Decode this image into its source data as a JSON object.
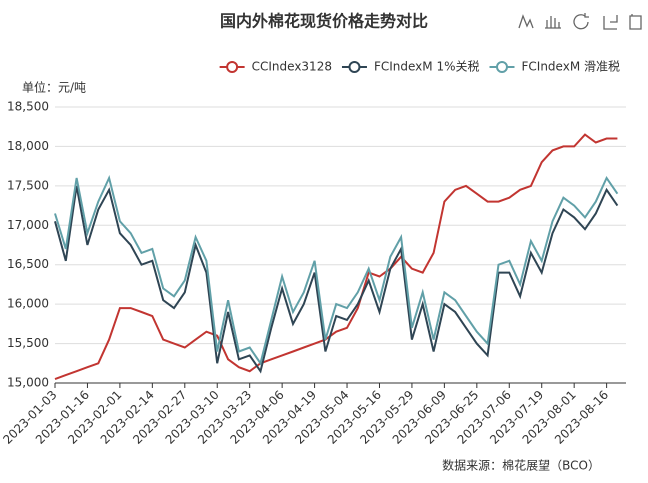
{
  "chart_data": {
    "type": "line",
    "title": "国内外棉花现货价格走势对比",
    "y_label": "单位：元/吨",
    "source": "数据来源：棉花展望（BCO）",
    "categories": [
      "2023-01-03",
      null,
      null,
      "2023-01-16",
      null,
      null,
      "2023-02-01",
      null,
      null,
      "2023-02-14",
      null,
      null,
      "2023-02-27",
      null,
      null,
      "2023-03-10",
      null,
      null,
      "2023-03-23",
      null,
      null,
      "2023-04-06",
      null,
      null,
      "2023-04-19",
      null,
      null,
      "2023-05-04",
      null,
      null,
      "2023-05-16",
      null,
      null,
      "2023-05-29",
      null,
      null,
      "2023-06-09",
      null,
      null,
      "2023-06-25",
      null,
      null,
      "2023-07-06",
      null,
      null,
      "2023-07-19",
      null,
      null,
      "2023-08-01",
      null,
      null,
      "2023-08-16",
      null
    ],
    "series": [
      {
        "name": "CCIndex3128",
        "color": "#c23531",
        "values": [
          15050,
          15100,
          15150,
          15200,
          15250,
          15550,
          15950,
          15950,
          15900,
          15850,
          15550,
          15500,
          15450,
          15550,
          15650,
          15600,
          15300,
          15200,
          15150,
          15250,
          15300,
          15350,
          15400,
          15450,
          15500,
          15550,
          15650,
          15700,
          15950,
          16400,
          16350,
          16450,
          16600,
          16450,
          16400,
          16650,
          17300,
          17450,
          17500,
          17400,
          17300,
          17300,
          17350,
          17450,
          17500,
          17800,
          17950,
          18000,
          18000,
          18150,
          18050,
          18100,
          18100
        ]
      },
      {
        "name": "FCIndexM 1%关税",
        "color": "#2f4554",
        "values": [
          17050,
          16550,
          17500,
          16750,
          17200,
          17450,
          16900,
          16750,
          16500,
          16550,
          16050,
          15950,
          16150,
          16750,
          16400,
          15250,
          15900,
          15300,
          15350,
          15150,
          15700,
          16200,
          15750,
          16000,
          16400,
          15400,
          15850,
          15800,
          16000,
          16300,
          15900,
          16450,
          16700,
          15550,
          16000,
          15400,
          16000,
          15900,
          15700,
          15500,
          15350,
          16400,
          16400,
          16100,
          16650,
          16400,
          16900,
          17200,
          17100,
          16950,
          17150,
          17450,
          17250
        ]
      },
      {
        "name": "FCIndexM 滑准税",
        "color": "#61a0a8",
        "values": [
          17150,
          16700,
          17600,
          16900,
          17300,
          17600,
          17050,
          16900,
          16650,
          16700,
          16200,
          16100,
          16300,
          16850,
          16550,
          15400,
          16050,
          15400,
          15450,
          15250,
          15800,
          16350,
          15900,
          16150,
          16550,
          15550,
          16000,
          15950,
          16150,
          16450,
          16050,
          16600,
          16850,
          15700,
          16150,
          15550,
          16150,
          16050,
          15850,
          15650,
          15500,
          16500,
          16550,
          16250,
          16800,
          16550,
          17050,
          17350,
          17250,
          17100,
          17300,
          17600,
          17400
        ]
      }
    ],
    "ylim": [
      15000,
      18500
    ],
    "yticks": [
      {
        "value": 15000,
        "label": "15,000"
      },
      {
        "value": 15500,
        "label": "15,500"
      },
      {
        "value": 16000,
        "label": "16,000"
      },
      {
        "value": 16500,
        "label": "16,500"
      },
      {
        "value": 17000,
        "label": "17,000"
      },
      {
        "value": 17500,
        "label": "17,500"
      },
      {
        "value": 18000,
        "label": "18,000"
      },
      {
        "value": 18500,
        "label": "18,500"
      }
    ],
    "grid": true,
    "legend": "top-right"
  }
}
